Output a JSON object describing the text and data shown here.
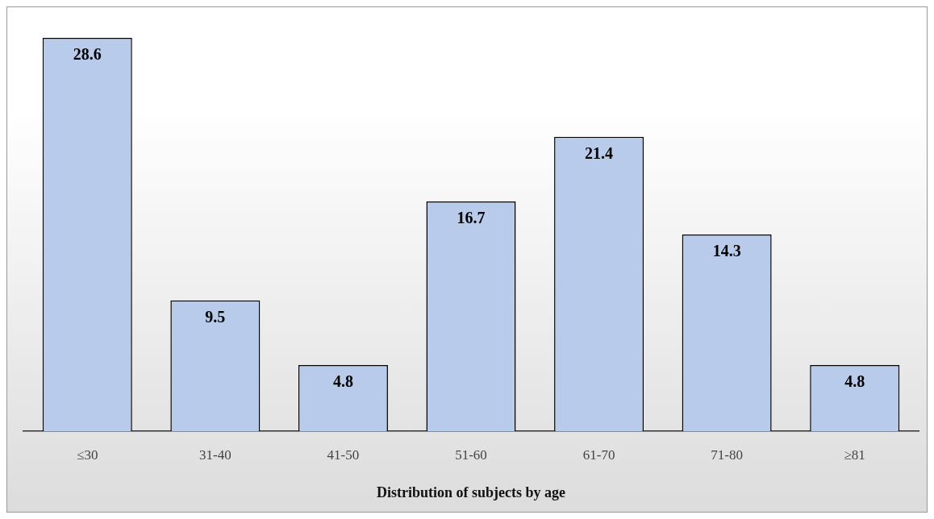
{
  "chart_data": {
    "type": "bar",
    "xlabel": "Distribution of subjects by age",
    "categories": [
      "≤30",
      "31-40",
      "41-50",
      "51-60",
      "61-70",
      "71-80",
      "≥81"
    ],
    "values": [
      28.6,
      9.5,
      4.8,
      16.7,
      21.4,
      14.3,
      4.8
    ],
    "color": "#b8cbea",
    "data_labels": true,
    "tick_labels": "x"
  }
}
